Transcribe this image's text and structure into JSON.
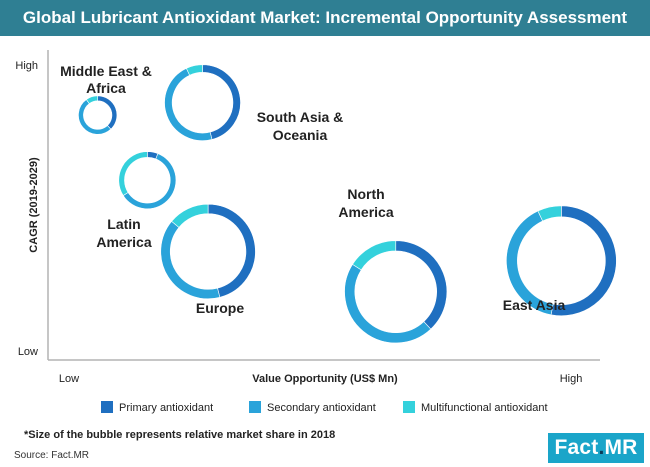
{
  "title": "Global Lubricant Antioxidant Market: Incremental Opportunity Assessment",
  "footnote": "*Size of the bubble represents relative market share in 2018",
  "source": "Source: Fact.MR",
  "logo": {
    "left": "Fact",
    "dot": ".",
    "right": "MR"
  },
  "colors": {
    "header": "#2f7f93",
    "primary": "#1f6fc0",
    "secondary": "#2aa3da",
    "multifunctional": "#34d1dc",
    "axis": "#b3b3b3"
  },
  "chart_data": {
    "type": "bubble-donut",
    "xlabel": "Value Opportunity  (US$ Mn)",
    "ylabel": "CAGR (2019-2029)",
    "x_tick_low": "Low",
    "x_tick_high": "High",
    "y_tick_low": "Low",
    "y_tick_high": "High",
    "legend": [
      {
        "key": "primary",
        "label": "Primary antioxidant"
      },
      {
        "key": "secondary",
        "label": "Secondary antioxidant"
      },
      {
        "key": "multifunctional",
        "label": "Multifunctional antioxidant"
      }
    ],
    "legend_position": "bottom",
    "bubbles": [
      {
        "region": "Middle East & Africa",
        "label_lines": [
          "Middle East &",
          "Africa"
        ],
        "x": 0.09,
        "y": 0.79,
        "size": 0.35,
        "shares": {
          "primary": 0.38,
          "secondary": 0.52,
          "multifunctional": 0.1
        }
      },
      {
        "region": "South Asia & Oceania",
        "label_lines": [
          "South Asia &",
          "Oceania"
        ],
        "x": 0.28,
        "y": 0.83,
        "size": 0.69,
        "shares": {
          "primary": 0.46,
          "secondary": 0.47,
          "multifunctional": 0.07
        }
      },
      {
        "region": "Latin America",
        "label_lines": [
          "Latin",
          "America"
        ],
        "x": 0.18,
        "y": 0.58,
        "size": 0.52,
        "shares": {
          "primary": 0.06,
          "secondary": 0.6,
          "multifunctional": 0.34
        }
      },
      {
        "region": "Europe",
        "label_lines": [
          "Europe"
        ],
        "x": 0.29,
        "y": 0.35,
        "size": 0.86,
        "shares": {
          "primary": 0.46,
          "secondary": 0.4,
          "multifunctional": 0.14
        }
      },
      {
        "region": "North America",
        "label_lines": [
          "North",
          "America"
        ],
        "x": 0.63,
        "y": 0.22,
        "size": 0.93,
        "shares": {
          "primary": 0.38,
          "secondary": 0.46,
          "multifunctional": 0.16
        }
      },
      {
        "region": "East Asia",
        "label_lines": [
          "East Asia"
        ],
        "x": 0.93,
        "y": 0.32,
        "size": 1.0,
        "shares": {
          "primary": 0.53,
          "secondary": 0.4,
          "multifunctional": 0.07
        }
      }
    ]
  }
}
